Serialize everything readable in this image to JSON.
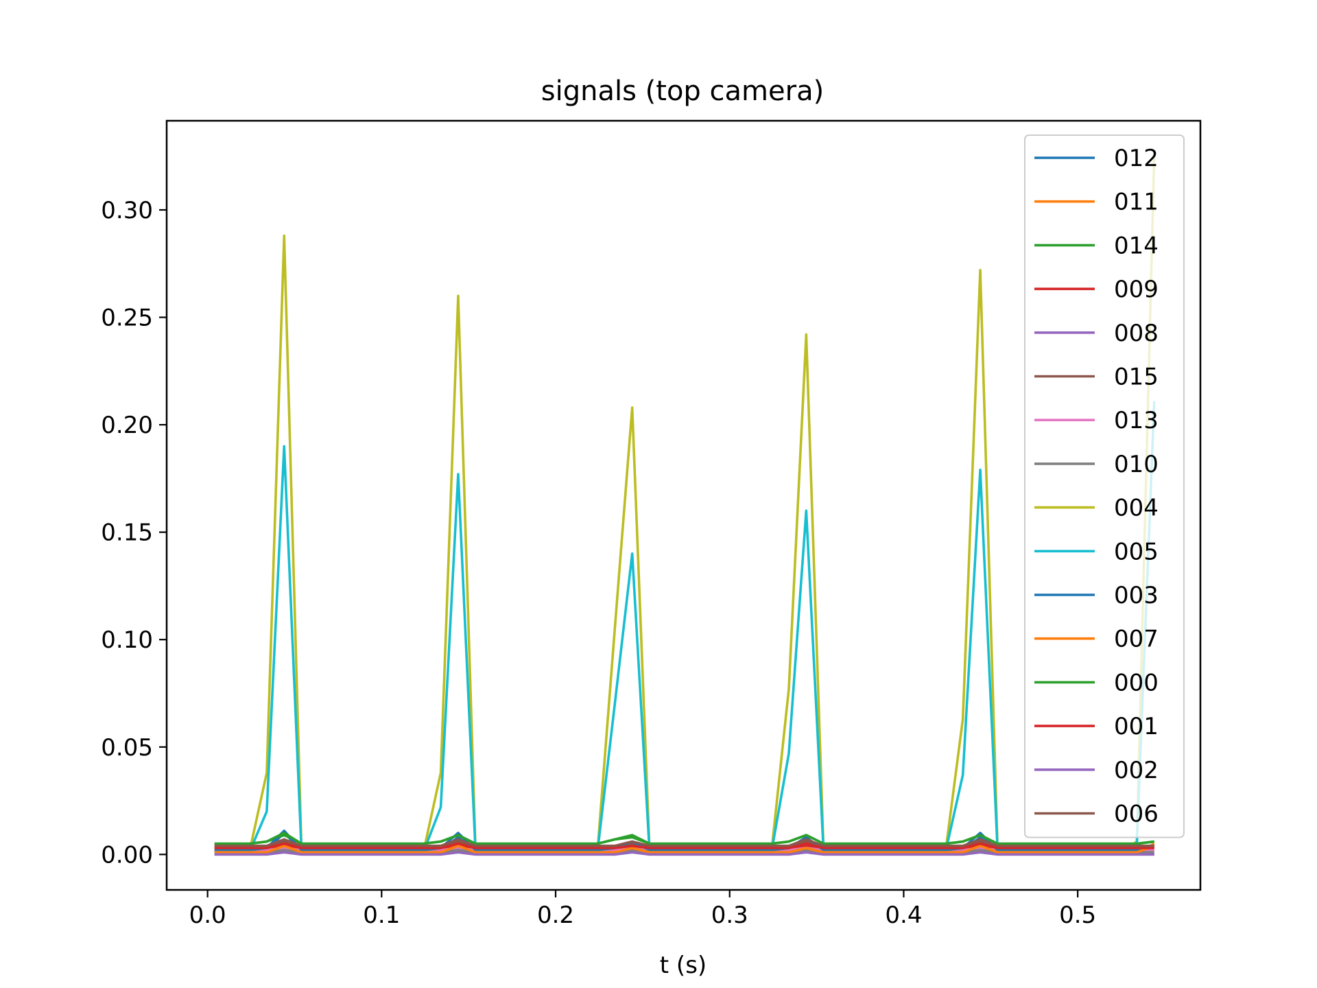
{
  "chart_data": {
    "type": "line",
    "title": "signals (top camera)",
    "xlabel": "t (s)",
    "ylabel": "",
    "xlim": [
      -0.0235,
      0.5705
    ],
    "ylim": [
      -0.0165,
      0.3415
    ],
    "xticks": [
      0.0,
      0.1,
      0.2,
      0.3,
      0.4,
      0.5
    ],
    "xtick_labels": [
      "0.0",
      "0.1",
      "0.2",
      "0.3",
      "0.4",
      "0.5"
    ],
    "yticks": [
      0.0,
      0.05,
      0.1,
      0.15,
      0.2,
      0.25,
      0.3
    ],
    "ytick_labels": [
      "0.00",
      "0.05",
      "0.10",
      "0.15",
      "0.20",
      "0.25",
      "0.30"
    ],
    "legend_position": "upper right",
    "grid": false,
    "x": [
      0.004,
      0.014,
      0.024,
      0.034,
      0.044,
      0.054,
      0.064,
      0.074,
      0.084,
      0.094,
      0.104,
      0.114,
      0.124,
      0.134,
      0.144,
      0.154,
      0.164,
      0.174,
      0.184,
      0.194,
      0.204,
      0.214,
      0.224,
      0.234,
      0.244,
      0.254,
      0.264,
      0.274,
      0.284,
      0.294,
      0.304,
      0.314,
      0.324,
      0.334,
      0.344,
      0.354,
      0.364,
      0.374,
      0.384,
      0.394,
      0.404,
      0.414,
      0.424,
      0.434,
      0.444,
      0.454,
      0.464,
      0.474,
      0.484,
      0.494,
      0.504,
      0.514,
      0.524,
      0.534,
      0.544
    ],
    "series": [
      {
        "name": "012",
        "color": "#1f77b4",
        "values": [
          0.002,
          0.002,
          0.002,
          0.002,
          0.01,
          0.002,
          0.002,
          0.002,
          0.002,
          0.002,
          0.002,
          0.002,
          0.002,
          0.002,
          0.008,
          0.002,
          0.002,
          0.002,
          0.002,
          0.002,
          0.002,
          0.002,
          0.002,
          0.002,
          0.005,
          0.002,
          0.002,
          0.002,
          0.002,
          0.002,
          0.002,
          0.002,
          0.002,
          0.002,
          0.007,
          0.002,
          0.002,
          0.002,
          0.002,
          0.002,
          0.002,
          0.002,
          0.002,
          0.002,
          0.008,
          0.002,
          0.002,
          0.002,
          0.002,
          0.002,
          0.002,
          0.002,
          0.002,
          0.002,
          0.004
        ]
      },
      {
        "name": "011",
        "color": "#ff7f0e",
        "values": [
          0.001,
          0.001,
          0.001,
          0.001,
          0.005,
          0.001,
          0.001,
          0.001,
          0.001,
          0.001,
          0.001,
          0.001,
          0.001,
          0.001,
          0.004,
          0.001,
          0.001,
          0.001,
          0.001,
          0.001,
          0.001,
          0.001,
          0.001,
          0.001,
          0.003,
          0.001,
          0.001,
          0.001,
          0.001,
          0.001,
          0.001,
          0.001,
          0.001,
          0.001,
          0.004,
          0.001,
          0.001,
          0.001,
          0.001,
          0.001,
          0.001,
          0.001,
          0.001,
          0.001,
          0.004,
          0.001,
          0.001,
          0.001,
          0.001,
          0.001,
          0.001,
          0.001,
          0.001,
          0.001,
          0.005
        ]
      },
      {
        "name": "014",
        "color": "#2ca02c",
        "values": [
          0.005,
          0.005,
          0.005,
          0.006,
          0.009,
          0.005,
          0.005,
          0.005,
          0.005,
          0.005,
          0.005,
          0.005,
          0.005,
          0.006,
          0.009,
          0.005,
          0.005,
          0.005,
          0.005,
          0.005,
          0.005,
          0.005,
          0.005,
          0.007,
          0.008,
          0.005,
          0.005,
          0.005,
          0.005,
          0.005,
          0.005,
          0.005,
          0.005,
          0.006,
          0.009,
          0.005,
          0.005,
          0.005,
          0.005,
          0.005,
          0.005,
          0.005,
          0.005,
          0.006,
          0.009,
          0.005,
          0.005,
          0.005,
          0.005,
          0.005,
          0.005,
          0.005,
          0.005,
          0.005,
          0.006
        ]
      },
      {
        "name": "009",
        "color": "#d62728",
        "values": [
          0.003,
          0.003,
          0.003,
          0.003,
          0.004,
          0.003,
          0.003,
          0.003,
          0.003,
          0.003,
          0.003,
          0.003,
          0.003,
          0.003,
          0.004,
          0.003,
          0.003,
          0.003,
          0.003,
          0.003,
          0.003,
          0.003,
          0.003,
          0.003,
          0.004,
          0.003,
          0.003,
          0.003,
          0.003,
          0.003,
          0.003,
          0.003,
          0.003,
          0.003,
          0.004,
          0.003,
          0.003,
          0.003,
          0.003,
          0.003,
          0.003,
          0.003,
          0.003,
          0.003,
          0.004,
          0.003,
          0.003,
          0.003,
          0.003,
          0.003,
          0.003,
          0.003,
          0.003,
          0.003,
          0.003
        ]
      },
      {
        "name": "008",
        "color": "#9467bd",
        "values": [
          0.0,
          0.0,
          0.0,
          0.0,
          0.001,
          0.0,
          0.0,
          0.0,
          0.0,
          0.0,
          0.0,
          0.0,
          0.0,
          0.0,
          0.001,
          0.0,
          0.0,
          0.0,
          0.0,
          0.0,
          0.0,
          0.0,
          0.0,
          0.0,
          0.001,
          0.0,
          0.0,
          0.0,
          0.0,
          0.0,
          0.0,
          0.0,
          0.0,
          0.0,
          0.001,
          0.0,
          0.0,
          0.0,
          0.0,
          0.0,
          0.0,
          0.0,
          0.0,
          0.0,
          0.001,
          0.0,
          0.0,
          0.0,
          0.0,
          0.0,
          0.0,
          0.0,
          0.0,
          0.0,
          0.0
        ]
      },
      {
        "name": "015",
        "color": "#8c564b",
        "values": [
          0.004,
          0.004,
          0.004,
          0.004,
          0.006,
          0.004,
          0.004,
          0.004,
          0.004,
          0.004,
          0.004,
          0.004,
          0.004,
          0.004,
          0.006,
          0.004,
          0.004,
          0.004,
          0.004,
          0.004,
          0.004,
          0.004,
          0.004,
          0.004,
          0.005,
          0.004,
          0.004,
          0.004,
          0.004,
          0.004,
          0.004,
          0.004,
          0.004,
          0.004,
          0.006,
          0.004,
          0.004,
          0.004,
          0.004,
          0.004,
          0.004,
          0.004,
          0.004,
          0.004,
          0.006,
          0.004,
          0.004,
          0.004,
          0.004,
          0.004,
          0.004,
          0.004,
          0.004,
          0.004,
          0.004
        ]
      },
      {
        "name": "013",
        "color": "#e377c2",
        "values": [
          0.002,
          0.002,
          0.002,
          0.002,
          0.003,
          0.002,
          0.002,
          0.002,
          0.002,
          0.002,
          0.002,
          0.002,
          0.002,
          0.002,
          0.003,
          0.002,
          0.002,
          0.002,
          0.002,
          0.002,
          0.002,
          0.002,
          0.002,
          0.002,
          0.003,
          0.002,
          0.002,
          0.002,
          0.002,
          0.002,
          0.002,
          0.002,
          0.002,
          0.002,
          0.003,
          0.002,
          0.002,
          0.002,
          0.002,
          0.002,
          0.002,
          0.002,
          0.002,
          0.002,
          0.003,
          0.002,
          0.002,
          0.002,
          0.002,
          0.002,
          0.002,
          0.002,
          0.002,
          0.002,
          0.002
        ]
      },
      {
        "name": "010",
        "color": "#7f7f7f",
        "values": [
          0.001,
          0.001,
          0.001,
          0.001,
          0.002,
          0.001,
          0.001,
          0.001,
          0.001,
          0.001,
          0.001,
          0.001,
          0.001,
          0.001,
          0.002,
          0.001,
          0.001,
          0.001,
          0.001,
          0.001,
          0.001,
          0.001,
          0.001,
          0.001,
          0.002,
          0.001,
          0.001,
          0.001,
          0.001,
          0.001,
          0.001,
          0.001,
          0.001,
          0.001,
          0.002,
          0.001,
          0.001,
          0.001,
          0.001,
          0.001,
          0.001,
          0.001,
          0.001,
          0.001,
          0.002,
          0.001,
          0.001,
          0.001,
          0.001,
          0.001,
          0.001,
          0.001,
          0.001,
          0.001,
          0.001
        ]
      },
      {
        "name": "004",
        "color": "#bcbd22",
        "values": [
          0.001,
          0.001,
          0.001,
          0.038,
          0.288,
          0.001,
          0.001,
          0.001,
          0.001,
          0.001,
          0.001,
          0.001,
          0.001,
          0.038,
          0.26,
          0.001,
          0.001,
          0.001,
          0.001,
          0.001,
          0.001,
          0.001,
          0.001,
          0.105,
          0.208,
          0.001,
          0.001,
          0.001,
          0.001,
          0.001,
          0.001,
          0.001,
          0.001,
          0.077,
          0.242,
          0.001,
          0.001,
          0.001,
          0.001,
          0.001,
          0.001,
          0.001,
          0.001,
          0.063,
          0.272,
          0.001,
          0.001,
          0.001,
          0.001,
          0.001,
          0.001,
          0.001,
          0.001,
          0.006,
          0.326
        ]
      },
      {
        "name": "005",
        "color": "#17becf",
        "values": [
          0.001,
          0.001,
          0.001,
          0.02,
          0.19,
          0.001,
          0.001,
          0.001,
          0.001,
          0.001,
          0.001,
          0.001,
          0.001,
          0.022,
          0.177,
          0.001,
          0.001,
          0.001,
          0.001,
          0.001,
          0.001,
          0.001,
          0.001,
          0.07,
          0.14,
          0.001,
          0.001,
          0.001,
          0.001,
          0.001,
          0.001,
          0.001,
          0.001,
          0.047,
          0.16,
          0.001,
          0.001,
          0.001,
          0.001,
          0.001,
          0.001,
          0.001,
          0.001,
          0.037,
          0.179,
          0.001,
          0.001,
          0.001,
          0.001,
          0.001,
          0.001,
          0.001,
          0.001,
          0.005,
          0.211
        ]
      },
      {
        "name": "003",
        "color": "#1f77b4",
        "values": [
          0.002,
          0.002,
          0.002,
          0.003,
          0.011,
          0.002,
          0.002,
          0.002,
          0.002,
          0.002,
          0.002,
          0.002,
          0.002,
          0.003,
          0.01,
          0.002,
          0.002,
          0.002,
          0.002,
          0.002,
          0.002,
          0.002,
          0.002,
          0.003,
          0.006,
          0.002,
          0.002,
          0.002,
          0.002,
          0.002,
          0.002,
          0.002,
          0.002,
          0.003,
          0.008,
          0.002,
          0.002,
          0.002,
          0.002,
          0.002,
          0.002,
          0.002,
          0.002,
          0.003,
          0.01,
          0.002,
          0.002,
          0.002,
          0.002,
          0.002,
          0.002,
          0.002,
          0.002,
          0.002,
          0.004
        ]
      },
      {
        "name": "007",
        "color": "#ff7f0e",
        "values": [
          0.001,
          0.001,
          0.001,
          0.001,
          0.004,
          0.001,
          0.001,
          0.001,
          0.001,
          0.001,
          0.001,
          0.001,
          0.001,
          0.001,
          0.004,
          0.001,
          0.001,
          0.001,
          0.001,
          0.001,
          0.001,
          0.001,
          0.001,
          0.001,
          0.003,
          0.001,
          0.001,
          0.001,
          0.001,
          0.001,
          0.001,
          0.001,
          0.001,
          0.001,
          0.003,
          0.001,
          0.001,
          0.001,
          0.001,
          0.001,
          0.001,
          0.001,
          0.001,
          0.001,
          0.004,
          0.001,
          0.001,
          0.001,
          0.001,
          0.001,
          0.001,
          0.001,
          0.001,
          0.001,
          0.004
        ]
      },
      {
        "name": "000",
        "color": "#2ca02c",
        "values": [
          0.005,
          0.005,
          0.005,
          0.006,
          0.01,
          0.005,
          0.005,
          0.005,
          0.005,
          0.005,
          0.005,
          0.005,
          0.005,
          0.006,
          0.009,
          0.005,
          0.005,
          0.005,
          0.005,
          0.005,
          0.005,
          0.005,
          0.005,
          0.007,
          0.009,
          0.005,
          0.005,
          0.005,
          0.005,
          0.005,
          0.005,
          0.005,
          0.005,
          0.006,
          0.009,
          0.005,
          0.005,
          0.005,
          0.005,
          0.005,
          0.005,
          0.005,
          0.005,
          0.006,
          0.009,
          0.005,
          0.005,
          0.005,
          0.005,
          0.005,
          0.005,
          0.005,
          0.005,
          0.005,
          0.006
        ]
      },
      {
        "name": "001",
        "color": "#d62728",
        "values": [
          0.003,
          0.003,
          0.003,
          0.003,
          0.005,
          0.003,
          0.003,
          0.003,
          0.003,
          0.003,
          0.003,
          0.003,
          0.003,
          0.003,
          0.005,
          0.003,
          0.003,
          0.003,
          0.003,
          0.003,
          0.003,
          0.003,
          0.003,
          0.003,
          0.004,
          0.003,
          0.003,
          0.003,
          0.003,
          0.003,
          0.003,
          0.003,
          0.003,
          0.003,
          0.005,
          0.003,
          0.003,
          0.003,
          0.003,
          0.003,
          0.003,
          0.003,
          0.003,
          0.003,
          0.005,
          0.003,
          0.003,
          0.003,
          0.003,
          0.003,
          0.003,
          0.003,
          0.003,
          0.003,
          0.003
        ]
      },
      {
        "name": "002",
        "color": "#9467bd",
        "values": [
          0.0,
          0.0,
          0.0,
          0.0,
          0.001,
          0.0,
          0.0,
          0.0,
          0.0,
          0.0,
          0.0,
          0.0,
          0.0,
          0.0,
          0.001,
          0.0,
          0.0,
          0.0,
          0.0,
          0.0,
          0.0,
          0.0,
          0.0,
          0.0,
          0.001,
          0.0,
          0.0,
          0.0,
          0.0,
          0.0,
          0.0,
          0.0,
          0.0,
          0.0,
          0.001,
          0.0,
          0.0,
          0.0,
          0.0,
          0.0,
          0.0,
          0.0,
          0.0,
          0.0,
          0.001,
          0.0,
          0.0,
          0.0,
          0.0,
          0.0,
          0.0,
          0.0,
          0.0,
          0.0,
          0.0
        ]
      },
      {
        "name": "006",
        "color": "#8c564b",
        "values": [
          0.004,
          0.004,
          0.004,
          0.004,
          0.007,
          0.004,
          0.004,
          0.004,
          0.004,
          0.004,
          0.004,
          0.004,
          0.004,
          0.004,
          0.007,
          0.004,
          0.004,
          0.004,
          0.004,
          0.004,
          0.004,
          0.004,
          0.004,
          0.004,
          0.006,
          0.004,
          0.004,
          0.004,
          0.004,
          0.004,
          0.004,
          0.004,
          0.004,
          0.004,
          0.007,
          0.004,
          0.004,
          0.004,
          0.004,
          0.004,
          0.004,
          0.004,
          0.004,
          0.004,
          0.007,
          0.004,
          0.004,
          0.004,
          0.004,
          0.004,
          0.004,
          0.004,
          0.004,
          0.004,
          0.004
        ]
      }
    ]
  }
}
